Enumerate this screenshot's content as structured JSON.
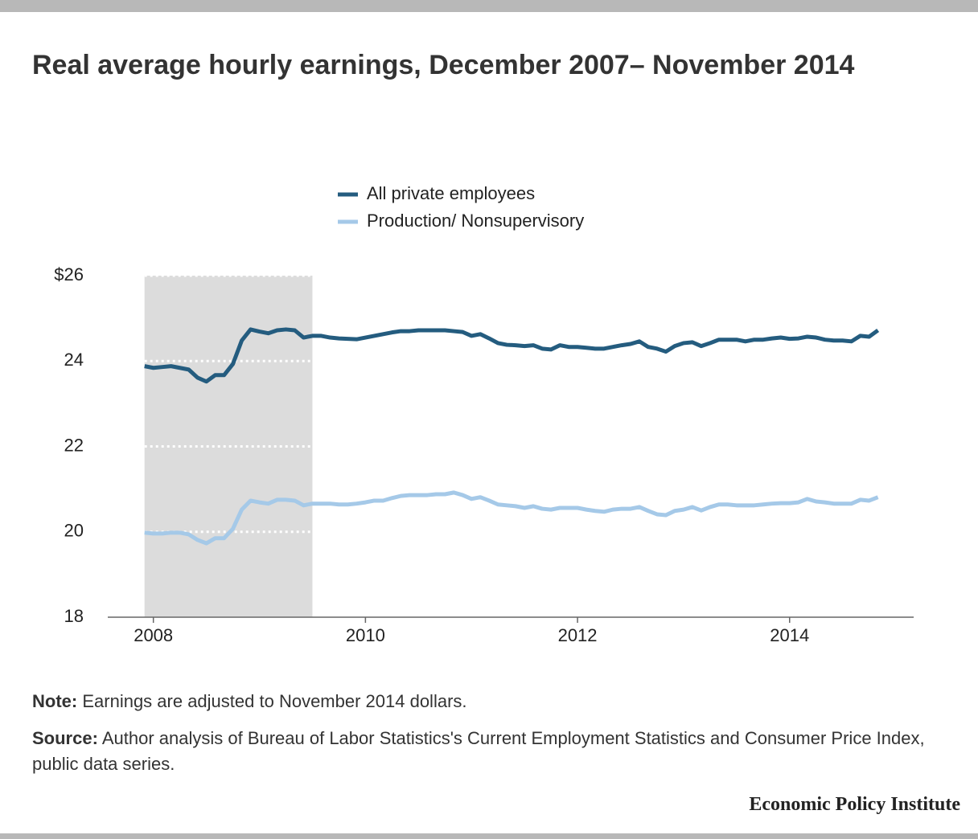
{
  "chart_data": {
    "type": "line",
    "title": "Real average hourly earnings, December 2007– November 2014",
    "note": {
      "label": "Note:",
      "text": "Earnings are adjusted to November 2014 dollars."
    },
    "source": {
      "label": "Source:",
      "text": "Author analysis of Bureau of Labor Statistics's Current Employment Statistics and Consumer Price Index, public data series."
    },
    "brand": "Economic Policy Institute",
    "x": [
      "2007-12",
      "2008-01",
      "2008-02",
      "2008-03",
      "2008-04",
      "2008-05",
      "2008-06",
      "2008-07",
      "2008-08",
      "2008-09",
      "2008-10",
      "2008-11",
      "2008-12",
      "2009-01",
      "2009-02",
      "2009-03",
      "2009-04",
      "2009-05",
      "2009-06",
      "2009-07",
      "2009-08",
      "2009-09",
      "2009-10",
      "2009-11",
      "2009-12",
      "2010-01",
      "2010-02",
      "2010-03",
      "2010-04",
      "2010-05",
      "2010-06",
      "2010-07",
      "2010-08",
      "2010-09",
      "2010-10",
      "2010-11",
      "2010-12",
      "2011-01",
      "2011-02",
      "2011-03",
      "2011-04",
      "2011-05",
      "2011-06",
      "2011-07",
      "2011-08",
      "2011-09",
      "2011-10",
      "2011-11",
      "2011-12",
      "2012-01",
      "2012-02",
      "2012-03",
      "2012-04",
      "2012-05",
      "2012-06",
      "2012-07",
      "2012-08",
      "2012-09",
      "2012-10",
      "2012-11",
      "2012-12",
      "2013-01",
      "2013-02",
      "2013-03",
      "2013-04",
      "2013-05",
      "2013-06",
      "2013-07",
      "2013-08",
      "2013-09",
      "2013-10",
      "2013-11",
      "2013-12",
      "2014-01",
      "2014-02",
      "2014-03",
      "2014-04",
      "2014-05",
      "2014-06",
      "2014-07",
      "2014-08",
      "2014-09",
      "2014-10",
      "2014-11"
    ],
    "series": [
      {
        "name": "All private employees",
        "color": "#245c7f",
        "values": [
          23.88,
          23.84,
          23.86,
          23.88,
          23.84,
          23.8,
          23.61,
          23.52,
          23.67,
          23.67,
          23.93,
          24.48,
          24.74,
          24.69,
          24.65,
          24.72,
          24.74,
          24.72,
          24.55,
          24.59,
          24.59,
          24.55,
          24.53,
          24.52,
          24.51,
          24.55,
          24.59,
          24.63,
          24.67,
          24.7,
          24.7,
          24.72,
          24.72,
          24.72,
          24.72,
          24.7,
          24.68,
          24.59,
          24.63,
          24.53,
          24.42,
          24.38,
          24.37,
          24.35,
          24.37,
          24.29,
          24.27,
          24.37,
          24.33,
          24.33,
          24.31,
          24.29,
          24.29,
          24.33,
          24.37,
          24.4,
          24.46,
          24.33,
          24.29,
          24.22,
          24.35,
          24.42,
          24.44,
          24.35,
          24.42,
          24.5,
          24.5,
          24.5,
          24.46,
          24.5,
          24.5,
          24.53,
          24.55,
          24.52,
          24.53,
          24.57,
          24.55,
          24.5,
          24.48,
          24.48,
          24.46,
          24.59,
          24.57,
          24.72
        ]
      },
      {
        "name": "Production/ Nonsupervisory",
        "color": "#a5c9e8",
        "values": [
          19.98,
          19.96,
          19.96,
          19.98,
          19.98,
          19.94,
          19.81,
          19.73,
          19.85,
          19.85,
          20.07,
          20.52,
          20.73,
          20.69,
          20.66,
          20.75,
          20.75,
          20.73,
          20.62,
          20.66,
          20.66,
          20.66,
          20.64,
          20.64,
          20.66,
          20.69,
          20.73,
          20.73,
          20.79,
          20.84,
          20.86,
          20.86,
          20.86,
          20.88,
          20.88,
          20.92,
          20.86,
          20.77,
          20.81,
          20.73,
          20.64,
          20.62,
          20.6,
          20.56,
          20.6,
          20.54,
          20.52,
          20.56,
          20.56,
          20.56,
          20.52,
          20.49,
          20.47,
          20.52,
          20.54,
          20.54,
          20.58,
          20.49,
          20.41,
          20.39,
          20.49,
          20.52,
          20.58,
          20.5,
          20.58,
          20.64,
          20.64,
          20.62,
          20.62,
          20.62,
          20.64,
          20.66,
          20.67,
          20.67,
          20.69,
          20.77,
          20.71,
          20.69,
          20.66,
          20.66,
          20.66,
          20.75,
          20.73,
          20.81
        ]
      }
    ],
    "xlim": [
      2007.57,
      2015.17
    ],
    "xticks": [
      2008,
      2010,
      2012,
      2014
    ],
    "ylim": [
      18,
      26
    ],
    "yticks": [
      18,
      20,
      22,
      24,
      {
        "value": 26,
        "label": "$26"
      }
    ],
    "recession_shade": {
      "from": "2007-12",
      "to": "2009-07",
      "color": "#dcdcdc"
    },
    "grid": true,
    "legend": "top"
  }
}
